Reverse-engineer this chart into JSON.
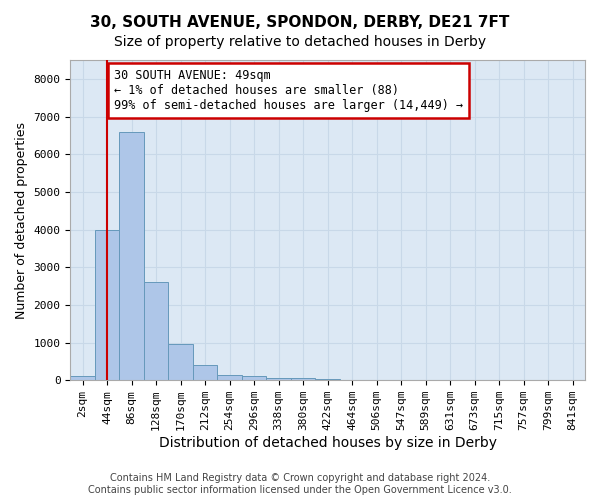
{
  "title1": "30, SOUTH AVENUE, SPONDON, DERBY, DE21 7FT",
  "title2": "Size of property relative to detached houses in Derby",
  "xlabel": "Distribution of detached houses by size in Derby",
  "ylabel": "Number of detached properties",
  "footer1": "Contains HM Land Registry data © Crown copyright and database right 2024.",
  "footer2": "Contains public sector information licensed under the Open Government Licence v3.0.",
  "annotation_line1": "30 SOUTH AVENUE: 49sqm",
  "annotation_line2": "← 1% of detached houses are smaller (88)",
  "annotation_line3": "99% of semi-detached houses are larger (14,449) →",
  "bar_values": [
    100,
    4000,
    6600,
    2600,
    950,
    400,
    150,
    100,
    50,
    50,
    30,
    10,
    10,
    5,
    5,
    5,
    5,
    5,
    5,
    5,
    2
  ],
  "bar_labels": [
    "2sqm",
    "44sqm",
    "86sqm",
    "128sqm",
    "170sqm",
    "212sqm",
    "254sqm",
    "296sqm",
    "338sqm",
    "380sqm",
    "422sqm",
    "464sqm",
    "506sqm",
    "547sqm",
    "589sqm",
    "631sqm",
    "673sqm",
    "715sqm",
    "757sqm",
    "799sqm",
    "841sqm"
  ],
  "bar_color": "#aec6e8",
  "bar_edge_color": "#6699bb",
  "vline_x": 1,
  "vline_color": "#cc0000",
  "annotation_box_color": "#cc0000",
  "ylim": [
    0,
    8500
  ],
  "yticks": [
    0,
    1000,
    2000,
    3000,
    4000,
    5000,
    6000,
    7000,
    8000
  ],
  "grid_color": "#c8d8e8",
  "bg_color": "#dce8f4",
  "title1_fontsize": 11,
  "title2_fontsize": 10,
  "xlabel_fontsize": 10,
  "ylabel_fontsize": 9,
  "tick_fontsize": 8,
  "footer_fontsize": 7,
  "annotation_fontsize": 8.5
}
